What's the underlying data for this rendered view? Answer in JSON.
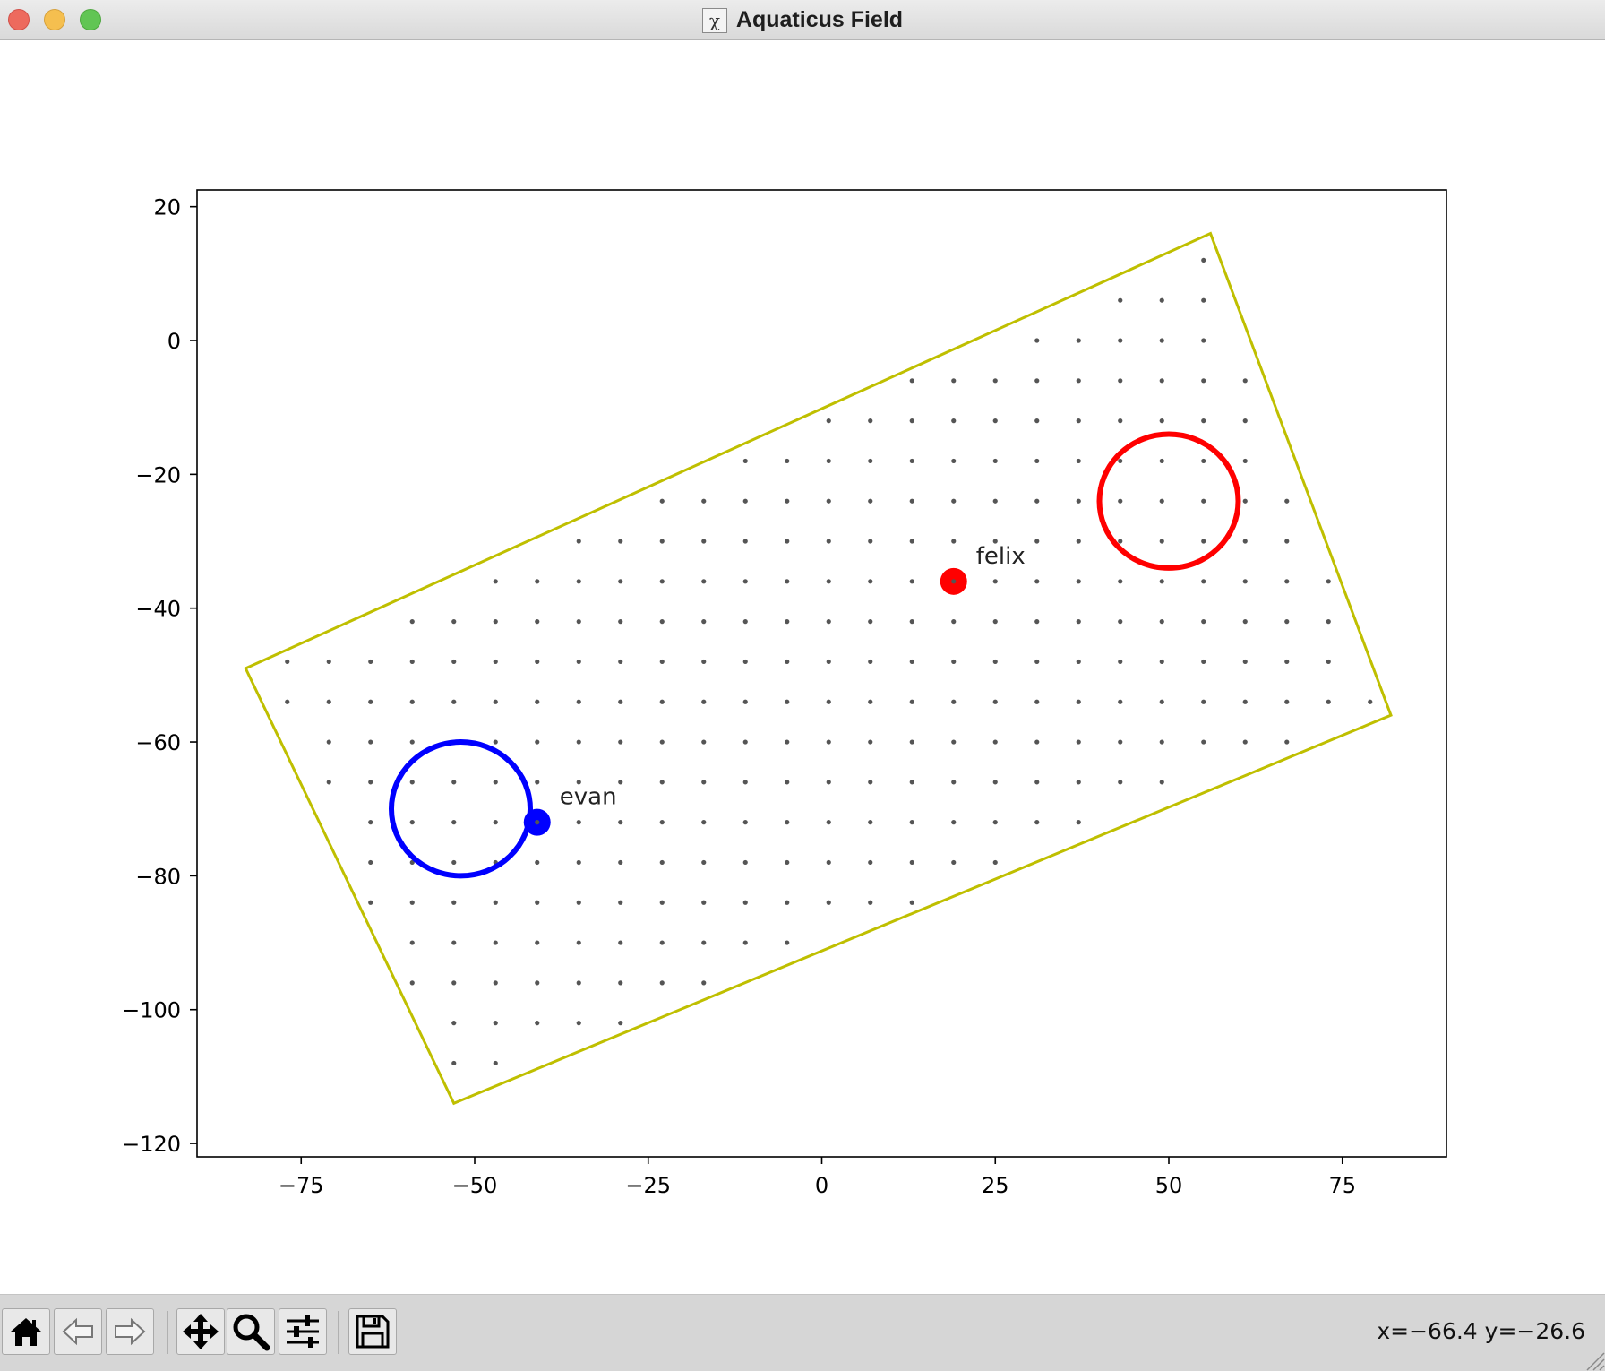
{
  "window": {
    "title": "Aquaticus Field",
    "icon": "x11-icon",
    "controls": [
      "close",
      "minimize",
      "maximize"
    ]
  },
  "toolbar": {
    "buttons": [
      {
        "id": "home",
        "icon": "home-icon"
      },
      {
        "id": "back",
        "icon": "arrow-left-icon"
      },
      {
        "id": "forward",
        "icon": "arrow-right-icon"
      },
      {
        "id": "pan",
        "icon": "move-icon"
      },
      {
        "id": "zoom",
        "icon": "magnifier-icon"
      },
      {
        "id": "configure",
        "icon": "sliders-icon"
      },
      {
        "id": "save",
        "icon": "floppy-disk-icon"
      }
    ],
    "coords": "x=−66.4 y=−26.6"
  },
  "chart_data": {
    "type": "scatter",
    "title": "",
    "xlabel": "",
    "ylabel": "",
    "xlim": [
      -90,
      90
    ],
    "ylim": [
      -122,
      22.5
    ],
    "xticks": [
      -75,
      -50,
      -25,
      0,
      25,
      50,
      75
    ],
    "xtick_labels": [
      "−75",
      "−50",
      "−25",
      "0",
      "25",
      "50",
      "75"
    ],
    "yticks": [
      20,
      0,
      -20,
      -40,
      -60,
      -80,
      -100,
      -120
    ],
    "ytick_labels": [
      "20",
      "0",
      "−20",
      "−40",
      "−60",
      "−80",
      "−100",
      "−120"
    ],
    "grid": false,
    "boundary": {
      "color": "#bfbf00",
      "points": [
        [
          56,
          16
        ],
        [
          82,
          -56
        ],
        [
          -53,
          -114
        ],
        [
          -83,
          -49
        ]
      ]
    },
    "waypoint_grid": {
      "color": "#555555",
      "x_start": -77,
      "x_step": 6,
      "y_start": -114,
      "y_step": 6,
      "inset": 1.5
    },
    "zones": [
      {
        "team": "blue",
        "color": "#0000ff",
        "center": [
          -52,
          -70
        ],
        "radius": 10
      },
      {
        "team": "red",
        "color": "#ff0000",
        "center": [
          50,
          -24
        ],
        "radius": 10
      }
    ],
    "agents": [
      {
        "name": "evan",
        "color": "#0000ff",
        "x": -41,
        "y": -72
      },
      {
        "name": "felix",
        "color": "#ff0000",
        "x": 19,
        "y": -36
      }
    ]
  }
}
